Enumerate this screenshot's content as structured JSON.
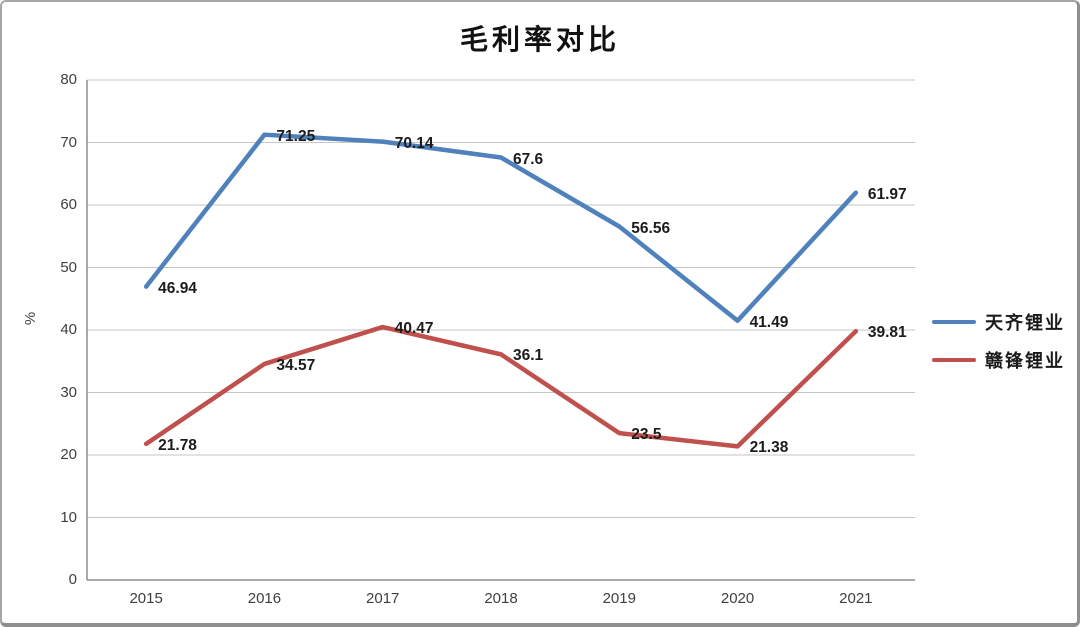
{
  "chart_data": {
    "type": "line",
    "title": "毛利率对比",
    "categories": [
      "2015",
      "2016",
      "2017",
      "2018",
      "2019",
      "2020",
      "2021"
    ],
    "series": [
      {
        "name": "天齐锂业",
        "color": "#4F81BD",
        "values": [
          46.94,
          71.25,
          70.14,
          67.6,
          56.56,
          41.49,
          61.97
        ]
      },
      {
        "name": "赣锋锂业",
        "color": "#C0504D",
        "values": [
          21.78,
          34.57,
          40.47,
          36.1,
          23.5,
          21.38,
          39.81
        ]
      }
    ],
    "xlabel": "",
    "ylabel": "%",
    "ylim": [
      0,
      80
    ],
    "yticks": [
      0,
      10,
      20,
      30,
      40,
      50,
      60,
      70,
      80
    ],
    "grid": true,
    "data_labels": true,
    "legend_position": "right",
    "colors": {
      "gridline": "#c6c6c6",
      "axis_line": "#8e8e8e",
      "tick_text": "#3f3f3f",
      "label_text": "#1c1c1c",
      "frame_border": "#a6a6a6"
    }
  }
}
